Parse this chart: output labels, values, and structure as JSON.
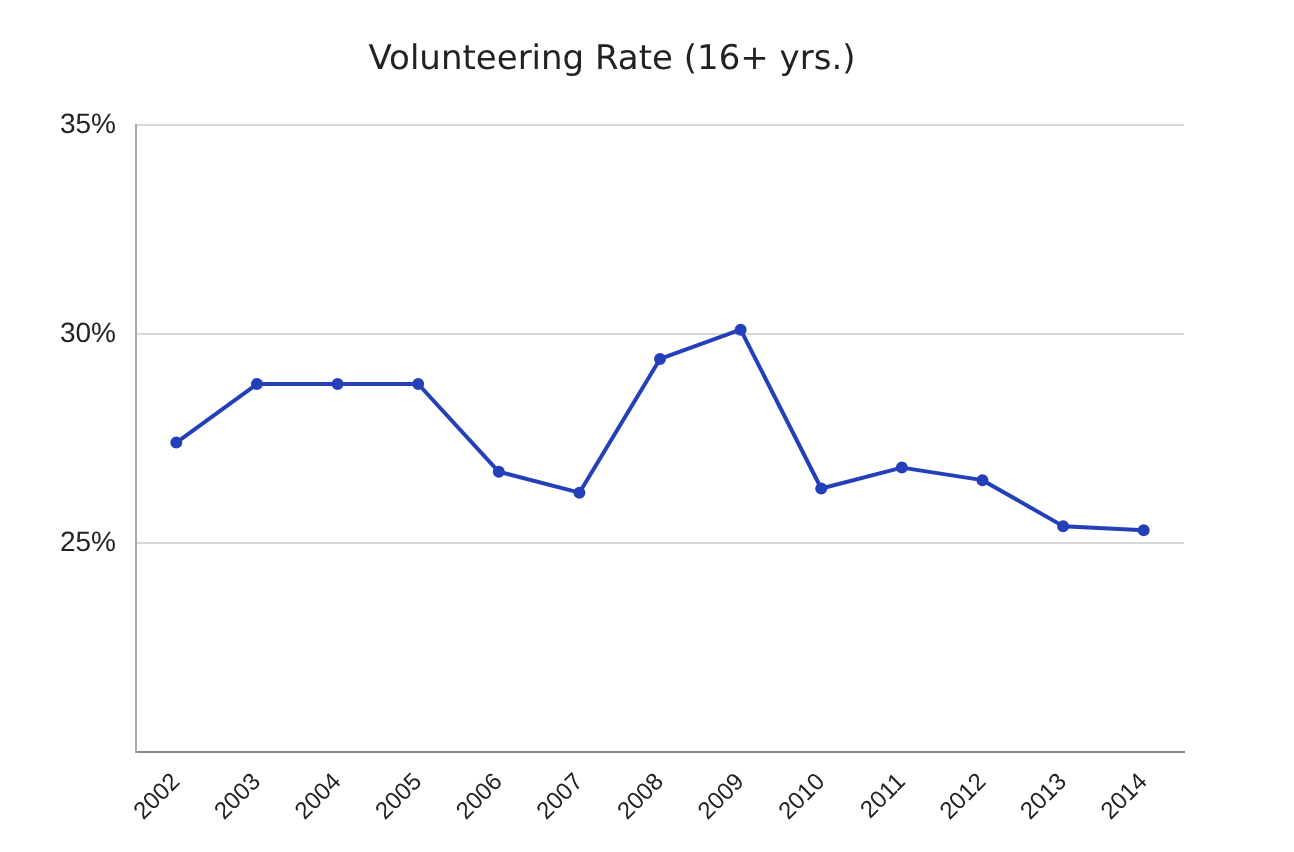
{
  "chart_data": {
    "type": "line",
    "title": "Volunteering Rate (16+ yrs.)",
    "categories": [
      "2002",
      "2003",
      "2004",
      "2005",
      "2006",
      "2007",
      "2008",
      "2009",
      "2010",
      "2011",
      "2012",
      "2013",
      "2014"
    ],
    "series": [
      {
        "color": "#2440b8",
        "values": [
          27.4,
          28.8,
          28.8,
          28.8,
          26.7,
          26.2,
          29.4,
          30.1,
          26.3,
          26.8,
          26.5,
          25.4,
          25.3
        ]
      }
    ],
    "ylim": [
      20,
      35
    ],
    "yticks": [
      {
        "value": 25,
        "label": "25%"
      },
      {
        "value": 30,
        "label": "30%"
      },
      {
        "value": 35,
        "label": "35%"
      }
    ],
    "grid": "y",
    "marker": "circle",
    "line_style": "solid"
  }
}
